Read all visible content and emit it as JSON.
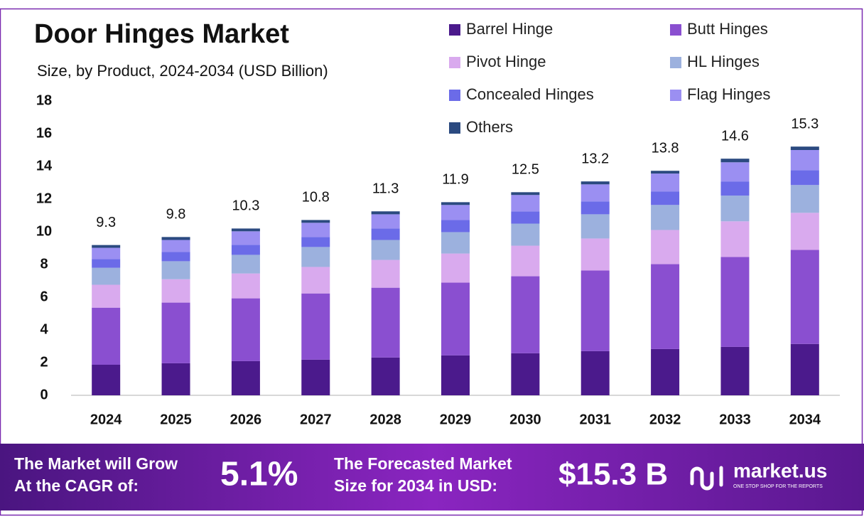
{
  "chart_data": {
    "type": "stacked_bar",
    "title": "Door Hinges Market",
    "subtitle": "Size, by Product, 2024-2034 (USD Billion)",
    "categories": [
      "2024",
      "2025",
      "2026",
      "2027",
      "2028",
      "2029",
      "2030",
      "2031",
      "2032",
      "2033",
      "2034"
    ],
    "series": [
      {
        "name": "Barrel Hinge",
        "color": "#4b1a8c",
        "values": [
          1.87,
          1.96,
          2.09,
          2.18,
          2.31,
          2.44,
          2.57,
          2.7,
          2.83,
          2.96,
          3.14
        ]
      },
      {
        "name": "Butt Hinges",
        "color": "#8a4fd0",
        "values": [
          3.49,
          3.71,
          3.84,
          4.05,
          4.27,
          4.45,
          4.71,
          4.93,
          5.19,
          5.5,
          5.75
        ]
      },
      {
        "name": "Pivot Hinge",
        "color": "#d9aaee",
        "values": [
          1.4,
          1.43,
          1.52,
          1.62,
          1.7,
          1.78,
          1.87,
          1.96,
          2.09,
          2.18,
          2.27
        ]
      },
      {
        "name": "HL Hinges",
        "color": "#9cb1de",
        "values": [
          1.04,
          1.1,
          1.14,
          1.22,
          1.22,
          1.31,
          1.35,
          1.48,
          1.53,
          1.57,
          1.7
        ]
      },
      {
        "name": "Concealed Hinges",
        "color": "#6b6be8",
        "values": [
          0.53,
          0.56,
          0.61,
          0.61,
          0.7,
          0.74,
          0.75,
          0.79,
          0.83,
          0.87,
          0.91
        ]
      },
      {
        "name": "Flag Hinges",
        "color": "#9b8ff2",
        "values": [
          0.69,
          0.74,
          0.83,
          0.87,
          0.87,
          0.92,
          1.0,
          1.04,
          1.09,
          1.17,
          1.23
        ]
      },
      {
        "name": "Others",
        "color": "#2b4a80",
        "values": [
          0.17,
          0.18,
          0.17,
          0.17,
          0.18,
          0.17,
          0.17,
          0.18,
          0.17,
          0.22,
          0.21
        ]
      }
    ],
    "totals": [
      9.3,
      9.8,
      10.3,
      10.8,
      11.3,
      11.9,
      12.5,
      13.2,
      13.8,
      14.6,
      15.3
    ],
    "ylim": [
      0,
      18
    ],
    "yticks": [
      0,
      2,
      4,
      6,
      8,
      10,
      12,
      14,
      16,
      18
    ]
  },
  "footer": {
    "cagr_label": [
      "The Market will Grow",
      "At the CAGR of:"
    ],
    "cagr_value": "5.1%",
    "forecast_label": [
      "The Forecasted Market",
      "Size for 2034 in USD:"
    ],
    "forecast_value": "$15.3 B",
    "brand": "market.us",
    "tagline": "ONE STOP SHOP FOR THE REPORTS"
  }
}
